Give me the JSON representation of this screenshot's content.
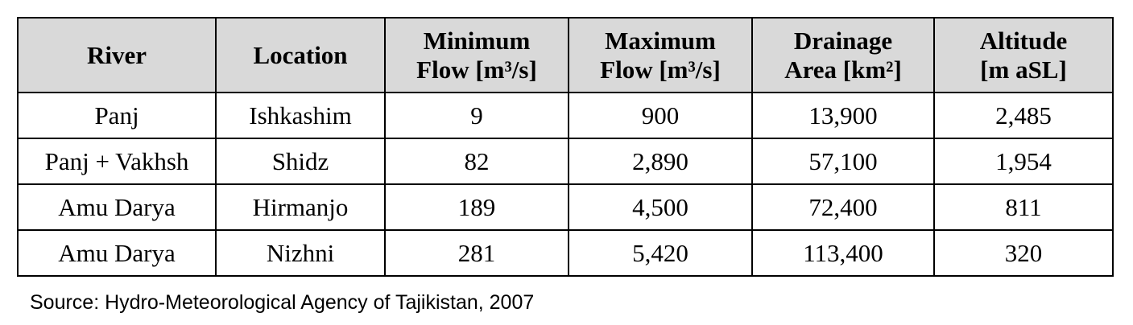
{
  "table": {
    "headers": [
      {
        "line1": "River",
        "line2": ""
      },
      {
        "line1": "Location",
        "line2": ""
      },
      {
        "line1": "Minimum",
        "line2": "Flow [m³/s]"
      },
      {
        "line1": "Maximum",
        "line2": "Flow [m³/s]"
      },
      {
        "line1": "Drainage",
        "line2": "Area [km²]"
      },
      {
        "line1": "Altitude",
        "line2": "[m aSL]"
      }
    ],
    "rows": [
      {
        "river": "Panj",
        "location": "Ishkashim",
        "min_flow": "9",
        "max_flow": "900",
        "drainage_area": "13,900",
        "altitude": "2,485"
      },
      {
        "river": "Panj + Vakhsh",
        "location": "Shidz",
        "min_flow": "82",
        "max_flow": "2,890",
        "drainage_area": "57,100",
        "altitude": "1,954"
      },
      {
        "river": "Amu Darya",
        "location": "Hirmanjo",
        "min_flow": "189",
        "max_flow": "4,500",
        "drainage_area": "72,400",
        "altitude": "811"
      },
      {
        "river": "Amu Darya",
        "location": "Nizhni",
        "min_flow": "281",
        "max_flow": "5,420",
        "drainage_area": "113,400",
        "altitude": "320"
      }
    ]
  },
  "source": "Source: Hydro-Meteorological Agency of Tajikistan, 2007",
  "colors": {
    "header_background": "#d9d9d9",
    "border": "#000000",
    "text": "#000000"
  }
}
